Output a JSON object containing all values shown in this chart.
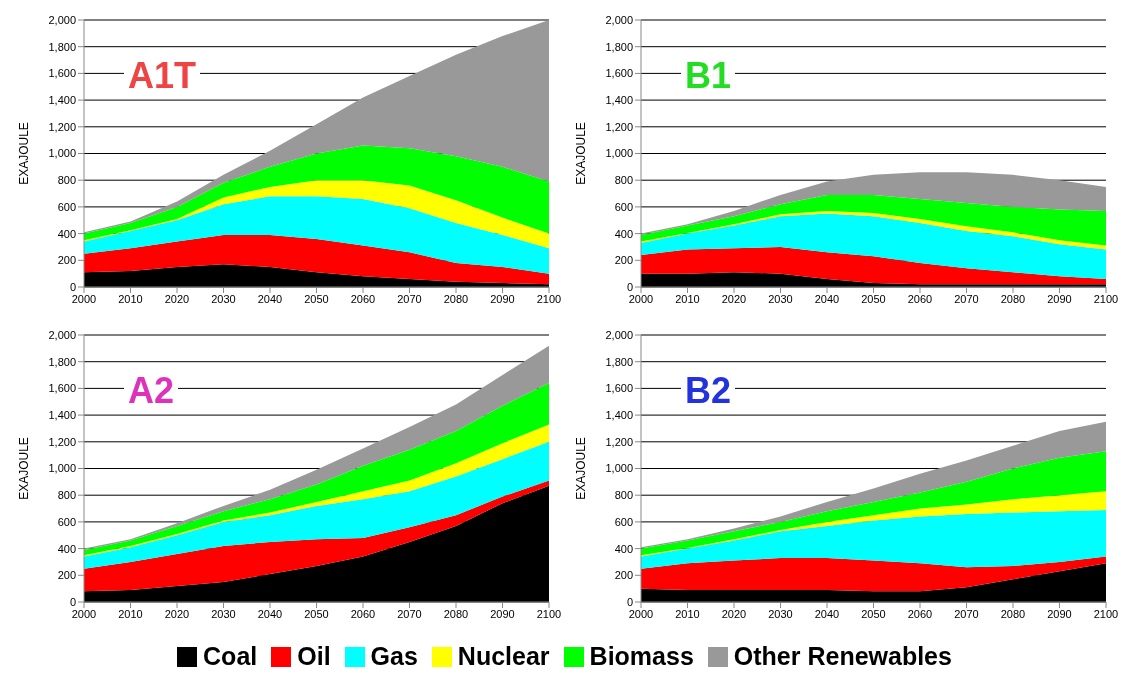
{
  "chart_data": [
    {
      "type": "area",
      "title": "A1T",
      "ylabel": "EXAJOULE",
      "stacked": true,
      "grid": "y",
      "x": [
        2000,
        2010,
        2020,
        2030,
        2040,
        2050,
        2060,
        2070,
        2080,
        2090,
        2100
      ],
      "xlim": [
        2000,
        2100
      ],
      "xticks": [
        2000,
        2010,
        2020,
        2030,
        2040,
        2050,
        2060,
        2070,
        2080,
        2090,
        2100
      ],
      "ylim": [
        0,
        2000
      ],
      "yticks": [
        0,
        200,
        400,
        600,
        800,
        {
          "value": 1000,
          "label": "1,000"
        },
        {
          "value": 1200,
          "label": "1,200"
        },
        {
          "value": 1400,
          "label": "1,400"
        },
        {
          "value": 1600,
          "label": "1,600"
        },
        {
          "value": 1800,
          "label": "1,800"
        },
        {
          "value": 2000,
          "label": "2,000"
        }
      ],
      "series": [
        {
          "color": "#000000",
          "values": [
            110,
            120,
            150,
            170,
            150,
            110,
            80,
            60,
            40,
            30,
            20
          ]
        },
        {
          "color": "#ff0000",
          "values": [
            140,
            170,
            190,
            220,
            240,
            250,
            230,
            200,
            140,
            120,
            80
          ]
        },
        {
          "color": "#00ffff",
          "values": [
            90,
            130,
            160,
            230,
            290,
            320,
            350,
            330,
            300,
            240,
            190
          ]
        },
        {
          "color": "#ffff00",
          "values": [
            10,
            5,
            10,
            50,
            70,
            120,
            140,
            170,
            170,
            130,
            110
          ]
        },
        {
          "color": "#00ff00",
          "values": [
            50,
            55,
            90,
            110,
            150,
            200,
            260,
            280,
            330,
            380,
            390
          ]
        },
        {
          "color": "#999999",
          "values": [
            10,
            10,
            40,
            60,
            120,
            220,
            360,
            540,
            760,
            980,
            1210
          ]
        }
      ]
    },
    {
      "type": "area",
      "title": "B1",
      "ylabel": "EXAJOULE",
      "stacked": true,
      "grid": "y",
      "x": [
        2000,
        2010,
        2020,
        2030,
        2040,
        2050,
        2060,
        2070,
        2080,
        2090,
        2100
      ],
      "xlim": [
        2000,
        2100
      ],
      "xticks": [
        2000,
        2010,
        2020,
        2030,
        2040,
        2050,
        2060,
        2070,
        2080,
        2090,
        2100
      ],
      "ylim": [
        0,
        2000
      ],
      "yticks": [
        0,
        200,
        400,
        600,
        800,
        {
          "value": 1000,
          "label": "1,000"
        },
        {
          "value": 1200,
          "label": "1,200"
        },
        {
          "value": 1400,
          "label": "1,400"
        },
        {
          "value": 1600,
          "label": "1,600"
        },
        {
          "value": 1800,
          "label": "1,800"
        },
        {
          "value": 2000,
          "label": "2,000"
        }
      ],
      "series": [
        {
          "color": "#000000",
          "values": [
            100,
            100,
            110,
            100,
            60,
            30,
            20,
            20,
            20,
            20,
            20
          ]
        },
        {
          "color": "#ff0000",
          "values": [
            140,
            180,
            180,
            200,
            200,
            200,
            160,
            120,
            90,
            60,
            40
          ]
        },
        {
          "color": "#00ffff",
          "values": [
            90,
            120,
            170,
            230,
            290,
            300,
            300,
            280,
            270,
            240,
            220
          ]
        },
        {
          "color": "#ffff00",
          "values": [
            10,
            5,
            10,
            15,
            20,
            25,
            30,
            35,
            30,
            30,
            30
          ]
        },
        {
          "color": "#00ff00",
          "values": [
            50,
            55,
            60,
            75,
            120,
            135,
            150,
            175,
            190,
            230,
            260
          ]
        },
        {
          "color": "#999999",
          "values": [
            10,
            10,
            40,
            70,
            100,
            150,
            200,
            230,
            240,
            220,
            180
          ]
        }
      ]
    },
    {
      "type": "area",
      "title": "A2",
      "ylabel": "EXAJOULE",
      "stacked": true,
      "grid": "y",
      "x": [
        2000,
        2010,
        2020,
        2030,
        2040,
        2050,
        2060,
        2070,
        2080,
        2090,
        2100
      ],
      "xlim": [
        2000,
        2100
      ],
      "xticks": [
        2000,
        2010,
        2020,
        2030,
        2040,
        2050,
        2060,
        2070,
        2080,
        2090,
        2100
      ],
      "ylim": [
        0,
        2000
      ],
      "yticks": [
        0,
        200,
        400,
        600,
        800,
        {
          "value": 1000,
          "label": "1,000"
        },
        {
          "value": 1200,
          "label": "1,200"
        },
        {
          "value": 1400,
          "label": "1,400"
        },
        {
          "value": 1600,
          "label": "1,600"
        },
        {
          "value": 1800,
          "label": "1,800"
        },
        {
          "value": 2000,
          "label": "2,000"
        }
      ],
      "series": [
        {
          "color": "#000000",
          "values": [
            80,
            90,
            120,
            150,
            210,
            270,
            340,
            450,
            570,
            740,
            870
          ]
        },
        {
          "color": "#ff0000",
          "values": [
            170,
            210,
            240,
            270,
            240,
            200,
            140,
            110,
            80,
            50,
            40
          ]
        },
        {
          "color": "#00ffff",
          "values": [
            90,
            110,
            140,
            180,
            200,
            250,
            290,
            270,
            290,
            280,
            290
          ]
        },
        {
          "color": "#ffff00",
          "values": [
            10,
            10,
            10,
            10,
            20,
            30,
            60,
            80,
            100,
            120,
            130
          ]
        },
        {
          "color": "#00ff00",
          "values": [
            40,
            40,
            60,
            70,
            100,
            130,
            190,
            230,
            240,
            280,
            310
          ]
        },
        {
          "color": "#999999",
          "values": [
            10,
            10,
            20,
            40,
            70,
            110,
            130,
            170,
            200,
            230,
            280
          ]
        }
      ]
    },
    {
      "type": "area",
      "title": "B2",
      "ylabel": "EXAJOULE",
      "stacked": true,
      "grid": "y",
      "legend": "bottom",
      "x": [
        2000,
        2010,
        2020,
        2030,
        2040,
        2050,
        2060,
        2070,
        2080,
        2090,
        2100
      ],
      "xlim": [
        2000,
        2100
      ],
      "xticks": [
        2000,
        2010,
        2020,
        2030,
        2040,
        2050,
        2060,
        2070,
        2080,
        2090,
        2100
      ],
      "ylim": [
        0,
        2000
      ],
      "yticks": [
        0,
        200,
        400,
        600,
        800,
        {
          "value": 1000,
          "label": "1,000"
        },
        {
          "value": 1200,
          "label": "1,200"
        },
        {
          "value": 1400,
          "label": "1,400"
        },
        {
          "value": 1600,
          "label": "1,600"
        },
        {
          "value": 1800,
          "label": "1,800"
        },
        {
          "value": 2000,
          "label": "2,000"
        }
      ],
      "series": [
        {
          "name": "Coal",
          "color": "#000000",
          "values": [
            100,
            90,
            90,
            90,
            90,
            80,
            80,
            110,
            170,
            230,
            290
          ]
        },
        {
          "name": "Oil",
          "color": "#ff0000",
          "values": [
            150,
            200,
            220,
            240,
            240,
            230,
            210,
            150,
            100,
            70,
            50
          ]
        },
        {
          "name": "Gas",
          "color": "#00ffff",
          "values": [
            90,
            110,
            150,
            200,
            240,
            300,
            350,
            400,
            400,
            380,
            350
          ]
        },
        {
          "name": "Nuclear",
          "color": "#ffff00",
          "values": [
            10,
            5,
            10,
            10,
            30,
            40,
            60,
            70,
            100,
            120,
            140
          ]
        },
        {
          "name": "Biomass",
          "color": "#00ff00",
          "values": [
            50,
            55,
            60,
            60,
            80,
            100,
            120,
            170,
            230,
            280,
            300
          ]
        },
        {
          "name": "Other Renewables",
          "color": "#999999",
          "values": [
            10,
            10,
            20,
            40,
            70,
            100,
            140,
            160,
            170,
            200,
            220
          ]
        }
      ]
    }
  ]
}
